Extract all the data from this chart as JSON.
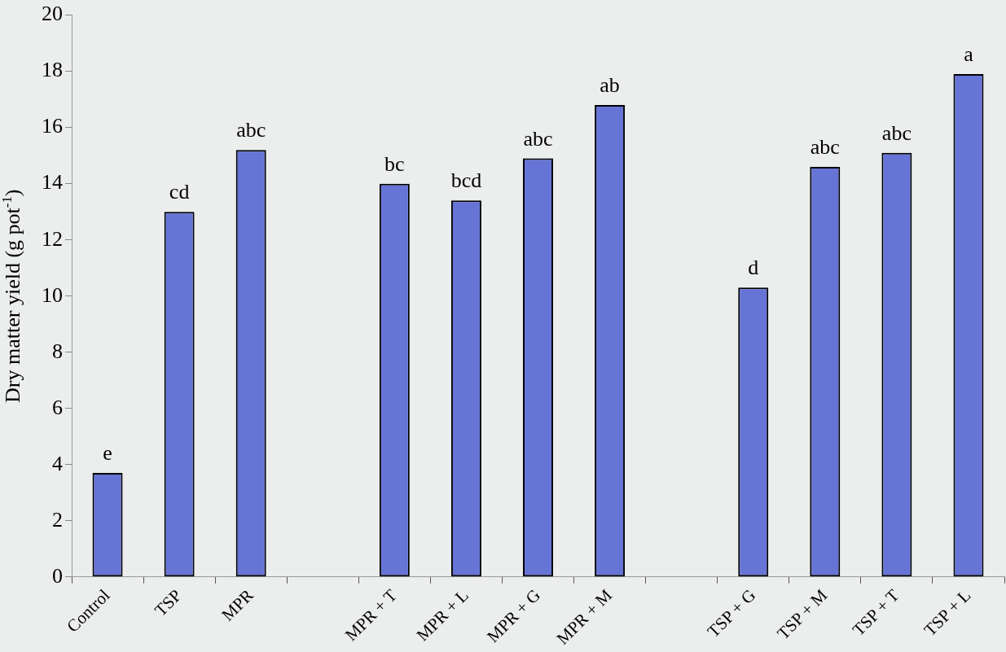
{
  "chart_data": {
    "type": "bar",
    "ylabel": "Dry matter yield (g pot$^{-1}$)",
    "categories": [
      "Control",
      "TSP",
      "MPR",
      null,
      "MPR + T",
      "MPR + L",
      "MPR + G",
      "MPR + M",
      null,
      "TSP + G",
      "TSP + M",
      "TSP + T",
      "TSP + L"
    ],
    "values": [
      3.7,
      13.0,
      15.2,
      null,
      14.0,
      13.4,
      14.9,
      16.8,
      null,
      10.3,
      14.6,
      15.1,
      17.9
    ],
    "color": "#6674d6",
    "ylim": [
      0,
      20
    ],
    "yticks": [
      0,
      2,
      4,
      6,
      8,
      10,
      12,
      14,
      16,
      18,
      20
    ],
    "grid": false,
    "legend": false,
    "annotations": [
      {
        "text": "e",
        "x": "Control",
        "y": 3.7
      },
      {
        "text": "cd",
        "x": "TSP",
        "y": 13.0
      },
      {
        "text": "abc",
        "x": "MPR",
        "y": 15.2
      },
      {
        "text": "bc",
        "x": "MPR + T",
        "y": 14.0
      },
      {
        "text": "bcd",
        "x": "MPR + L",
        "y": 13.4
      },
      {
        "text": "abc",
        "x": "MPR + G",
        "y": 14.9
      },
      {
        "text": "ab",
        "x": "MPR + M",
        "y": 16.8
      },
      {
        "text": "d",
        "x": "TSP + G",
        "y": 10.3
      },
      {
        "text": "abc",
        "x": "TSP + M",
        "y": 14.6
      },
      {
        "text": "abc",
        "x": "TSP + T",
        "y": 15.1
      },
      {
        "text": "a",
        "x": "TSP + L",
        "y": 17.9
      }
    ]
  }
}
